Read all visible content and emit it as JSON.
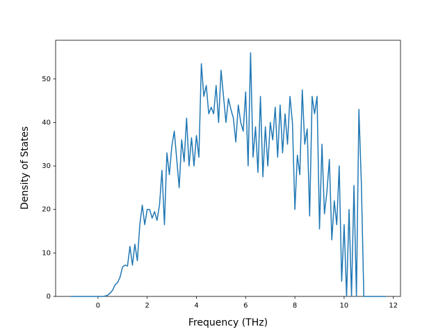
{
  "chart_data": {
    "type": "line",
    "xlabel": "Frequency (THz)",
    "ylabel": "Density of States",
    "xlim": [
      -1.72,
      12.29
    ],
    "ylim": [
      0,
      58.9
    ],
    "xticks": [
      0,
      2,
      4,
      6,
      8,
      10,
      12
    ],
    "yticks": [
      0,
      10,
      20,
      30,
      40,
      50
    ],
    "grid": false,
    "x": [
      -1.1,
      -1.0,
      -0.9,
      -0.8,
      -0.7,
      -0.6,
      -0.5,
      -0.4,
      -0.3,
      -0.2,
      -0.1,
      0.0,
      0.1,
      0.2,
      0.3,
      0.4,
      0.5,
      0.6,
      0.7,
      0.8,
      0.9,
      1.0,
      1.1,
      1.2,
      1.3,
      1.4,
      1.5,
      1.6,
      1.7,
      1.8,
      1.9,
      2.0,
      2.1,
      2.2,
      2.3,
      2.4,
      2.5,
      2.6,
      2.7,
      2.8,
      2.9,
      3.0,
      3.1,
      3.2,
      3.3,
      3.4,
      3.5,
      3.6,
      3.7,
      3.8,
      3.9,
      4.0,
      4.1,
      4.2,
      4.3,
      4.4,
      4.5,
      4.6,
      4.7,
      4.8,
      4.9,
      5.0,
      5.1,
      5.2,
      5.3,
      5.4,
      5.5,
      5.6,
      5.7,
      5.8,
      5.9,
      6.0,
      6.1,
      6.2,
      6.3,
      6.4,
      6.5,
      6.6,
      6.7,
      6.8,
      6.9,
      7.0,
      7.1,
      7.2,
      7.3,
      7.4,
      7.5,
      7.6,
      7.7,
      7.8,
      7.9,
      8.0,
      8.1,
      8.2,
      8.3,
      8.4,
      8.5,
      8.6,
      8.7,
      8.8,
      8.9,
      9.0,
      9.1,
      9.2,
      9.3,
      9.4,
      9.5,
      9.6,
      9.7,
      9.8,
      9.9,
      10.0,
      10.1,
      10.2,
      10.3,
      10.4,
      10.5,
      10.6,
      10.7,
      10.8,
      10.9,
      11.0,
      11.1,
      11.2,
      11.3,
      11.4,
      11.5,
      11.6,
      11.7
    ],
    "series": [
      {
        "color": "#1f77b4",
        "values": [
          0,
          0,
          0,
          0,
          0,
          0,
          0,
          0,
          0,
          0,
          0,
          0,
          0,
          0,
          0.1,
          0.3,
          0.8,
          1.5,
          2.7,
          3.2,
          4.5,
          6.8,
          7.2,
          7.0,
          11.5,
          7.2,
          12.0,
          8.2,
          16.5,
          21,
          16.5,
          20,
          20,
          18,
          19.5,
          17.5,
          21,
          29,
          16.5,
          33,
          28,
          34.5,
          38,
          31.5,
          25,
          36,
          31,
          41,
          30,
          36.5,
          30,
          37,
          32,
          53.5,
          46,
          48.5,
          42,
          43.5,
          42,
          48.5,
          40,
          52,
          46,
          40,
          45.5,
          43,
          41,
          35.5,
          44,
          40,
          38,
          47,
          30,
          56,
          32,
          39,
          28.5,
          46,
          27.5,
          39,
          30,
          40,
          36,
          43.5,
          32,
          44,
          33,
          42,
          35,
          46,
          40,
          20,
          32.5,
          28,
          47.5,
          35,
          38.5,
          18.5,
          46,
          42,
          46,
          15.5,
          35,
          19,
          24,
          31.5,
          13,
          22,
          16.5,
          30,
          3.5,
          16.5,
          0,
          20,
          0,
          25.5,
          0,
          43,
          26,
          0,
          0,
          0,
          0,
          0,
          0,
          0,
          0,
          0,
          0
        ]
      }
    ]
  }
}
